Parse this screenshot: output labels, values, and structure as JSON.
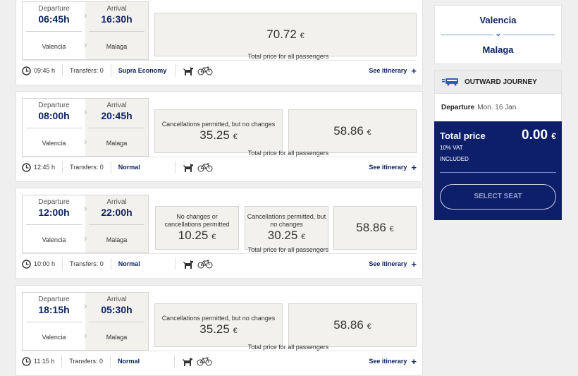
{
  "common": {
    "departure_label": "Departure",
    "arrival_label": "Arrival",
    "caption": "Total price for all passengers",
    "see_itinerary": "See itinerary",
    "plus": "+"
  },
  "trips": [
    {
      "dep_time": "06:45h",
      "arr_time": "16:30h",
      "origin": "Valencia",
      "destination": "Malaga",
      "duration": "09:45 h",
      "transfers": "Transfers: 0",
      "class": "Supra Economy",
      "prices": [
        {
          "note": "",
          "value": "70.72",
          "currency": "€"
        }
      ]
    },
    {
      "dep_time": "08:00h",
      "arr_time": "20:45h",
      "origin": "Valencia",
      "destination": "Malaga",
      "duration": "12:45 h",
      "transfers": "Transfers: 0",
      "class": "Normal",
      "prices": [
        {
          "note": "Cancellations permitted, but no changes",
          "value": "35.25",
          "currency": "€"
        },
        {
          "note": "",
          "value": "58.86",
          "currency": "€"
        }
      ]
    },
    {
      "dep_time": "12:00h",
      "arr_time": "22:00h",
      "origin": "Valencia",
      "destination": "Malaga",
      "duration": "10:00 h",
      "transfers": "Transfers: 0",
      "class": "Normal",
      "prices": [
        {
          "note": "No changes or cancellations permitted",
          "value": "10.25",
          "currency": "€"
        },
        {
          "note": "Cancellations permitted, but no changes",
          "value": "30.25",
          "currency": "€"
        },
        {
          "note": "",
          "value": "58.86",
          "currency": "€"
        }
      ]
    },
    {
      "dep_time": "18:15h",
      "arr_time": "05:30h",
      "origin": "Valencia",
      "destination": "Malaga",
      "duration": "11:15 h",
      "transfers": "Transfers: 0",
      "class": "Normal",
      "prices": [
        {
          "note": "Cancellations permitted, but no changes",
          "value": "35.25",
          "currency": "€"
        },
        {
          "note": "",
          "value": "58.86",
          "currency": "€"
        }
      ]
    }
  ],
  "sidebar": {
    "origin": "Valencia",
    "destination": "Malaga",
    "journey_title": "OUTWARD JOURNEY",
    "departure_label": "Departure",
    "departure_date": "Mon. 16 Jan.",
    "total_label": "Total price",
    "total_value": "0.00",
    "currency": "€",
    "vat": "10% VAT",
    "included": "INCLUDED",
    "select_seat": "SELECT SEAT",
    "accent": "#0d1f6b"
  }
}
